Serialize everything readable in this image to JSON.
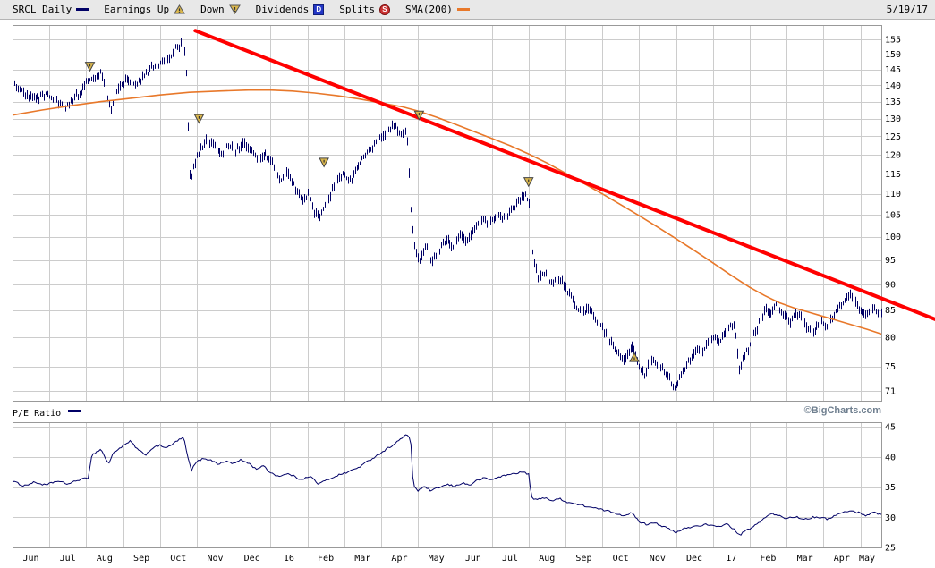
{
  "header": {
    "symbol_label": "SRCL Daily",
    "legend_items": [
      {
        "label": "Earnings Up",
        "icon": "earnings-up-icon"
      },
      {
        "label": "Down",
        "icon": "earnings-down-icon"
      },
      {
        "label": "Dividends",
        "icon": "dividend-icon",
        "glyph": "D"
      },
      {
        "label": "Splits",
        "icon": "split-icon",
        "glyph": "S"
      },
      {
        "label": "SMA(200)",
        "icon": "sma-line-icon"
      }
    ],
    "date": "5/19/17"
  },
  "pe_panel_label": "P/E Ratio",
  "copyright": "©BigCharts.com",
  "colors": {
    "price": "#000066",
    "sma": "#e8782a",
    "trend": "#ff0000",
    "grid": "#cccccc",
    "frame": "#999999",
    "marker_fill": "#d9b64d",
    "marker_stroke": "#444444",
    "dividend": "#2337c6",
    "split": "#cc3333",
    "legend_bg": "#e8e8e8",
    "copyright_color": "#6f7f8f"
  },
  "chart_data": [
    {
      "type": "ohlc-bar",
      "name": "SRCL daily price",
      "title": "SRCL Daily with SMA(200) and downtrend line",
      "x_unit": "months since 2015-06-01",
      "x_range": [
        0,
        23.57
      ],
      "x_tick_labels": [
        "Jun",
        "Jul",
        "Aug",
        "Sep",
        "Oct",
        "Nov",
        "Dec",
        "16",
        "Feb",
        "Mar",
        "Apr",
        "May",
        "Jun",
        "Jul",
        "Aug",
        "Sep",
        "Oct",
        "Nov",
        "Dec",
        "17",
        "Feb",
        "Mar",
        "Apr",
        "May"
      ],
      "y_scale": "log",
      "y_range": [
        69.5,
        160
      ],
      "y_ticks": [
        155,
        150,
        145,
        140,
        135,
        130,
        125,
        120,
        115,
        110,
        105,
        100,
        95,
        90,
        85,
        80,
        75,
        71
      ],
      "grid": true,
      "price_path": [
        [
          0,
          140.5
        ],
        [
          0.3,
          137.5
        ],
        [
          0.6,
          135.5
        ],
        [
          0.9,
          137.5
        ],
        [
          1.15,
          135.5
        ],
        [
          1.45,
          133.5
        ],
        [
          1.75,
          137
        ],
        [
          2.0,
          140.5
        ],
        [
          2.2,
          142.5
        ],
        [
          2.4,
          144.5
        ],
        [
          2.55,
          137.5
        ],
        [
          2.65,
          131.5
        ],
        [
          2.85,
          139
        ],
        [
          3.05,
          142
        ],
        [
          3.35,
          140.5
        ],
        [
          3.65,
          144
        ],
        [
          3.9,
          146.5
        ],
        [
          4.15,
          148
        ],
        [
          4.4,
          151.5
        ],
        [
          4.6,
          154
        ],
        [
          4.7,
          149
        ],
        [
          4.76,
          128
        ],
        [
          4.82,
          112
        ],
        [
          4.9,
          117
        ],
        [
          5.05,
          120.5
        ],
        [
          5.25,
          124
        ],
        [
          5.45,
          123
        ],
        [
          5.65,
          119.5
        ],
        [
          5.85,
          122.5
        ],
        [
          6.05,
          121
        ],
        [
          6.25,
          123
        ],
        [
          6.45,
          121.5
        ],
        [
          6.65,
          118.5
        ],
        [
          6.85,
          120.5
        ],
        [
          7.05,
          117.5
        ],
        [
          7.25,
          113.5
        ],
        [
          7.45,
          115.5
        ],
        [
          7.65,
          111.5
        ],
        [
          7.85,
          108.5
        ],
        [
          8.05,
          110.5
        ],
        [
          8.2,
          105.5
        ],
        [
          8.35,
          104.5
        ],
        [
          8.55,
          108.5
        ],
        [
          8.75,
          112.5
        ],
        [
          8.95,
          115
        ],
        [
          9.15,
          113
        ],
        [
          9.35,
          117
        ],
        [
          9.6,
          120.5
        ],
        [
          9.85,
          123
        ],
        [
          10.1,
          125.5
        ],
        [
          10.35,
          128
        ],
        [
          10.5,
          126
        ],
        [
          10.7,
          126.5
        ],
        [
          10.82,
          104
        ],
        [
          10.92,
          97
        ],
        [
          11.05,
          95
        ],
        [
          11.2,
          98
        ],
        [
          11.35,
          94.5
        ],
        [
          11.55,
          97
        ],
        [
          11.75,
          99.5
        ],
        [
          11.95,
          98
        ],
        [
          12.15,
          100.5
        ],
        [
          12.35,
          99
        ],
        [
          12.55,
          102
        ],
        [
          12.75,
          104
        ],
        [
          12.95,
          103
        ],
        [
          13.15,
          105.5
        ],
        [
          13.35,
          104
        ],
        [
          13.55,
          106.5
        ],
        [
          13.75,
          108.5
        ],
        [
          13.9,
          110
        ],
        [
          14.02,
          108
        ],
        [
          14.1,
          96
        ],
        [
          14.25,
          91
        ],
        [
          14.45,
          92.5
        ],
        [
          14.65,
          90
        ],
        [
          14.85,
          91.5
        ],
        [
          15.05,
          88.5
        ],
        [
          15.25,
          86
        ],
        [
          15.45,
          84.5
        ],
        [
          15.65,
          85.5
        ],
        [
          15.85,
          83
        ],
        [
          16.1,
          80.5
        ],
        [
          16.35,
          78
        ],
        [
          16.6,
          76
        ],
        [
          16.8,
          78.5
        ],
        [
          17.0,
          75
        ],
        [
          17.15,
          73.5
        ],
        [
          17.3,
          76.5
        ],
        [
          17.5,
          75
        ],
        [
          17.7,
          74
        ],
        [
          17.9,
          72
        ],
        [
          18.0,
          71.5
        ],
        [
          18.15,
          74
        ],
        [
          18.35,
          76
        ],
        [
          18.55,
          77.5
        ],
        [
          18.75,
          78
        ],
        [
          18.95,
          80
        ],
        [
          19.15,
          79
        ],
        [
          19.35,
          81
        ],
        [
          19.55,
          82.5
        ],
        [
          19.63,
          79.5
        ],
        [
          19.72,
          74.5
        ],
        [
          19.85,
          77
        ],
        [
          20.0,
          78.5
        ],
        [
          20.2,
          82
        ],
        [
          20.4,
          85.5
        ],
        [
          20.55,
          84
        ],
        [
          20.7,
          86.5
        ],
        [
          20.9,
          84.5
        ],
        [
          21.1,
          83
        ],
        [
          21.3,
          84.5
        ],
        [
          21.5,
          82
        ],
        [
          21.7,
          80.5
        ],
        [
          21.9,
          83
        ],
        [
          22.1,
          82
        ],
        [
          22.3,
          84.5
        ],
        [
          22.5,
          86.5
        ],
        [
          22.7,
          88
        ],
        [
          22.85,
          86.5
        ],
        [
          23.0,
          85
        ],
        [
          23.15,
          84
        ],
        [
          23.35,
          85.5
        ],
        [
          23.57,
          84.5
        ]
      ],
      "sma200": {
        "name": "SMA(200)",
        "points": [
          [
            0,
            131
          ],
          [
            0.8,
            132.5
          ],
          [
            1.6,
            133.8
          ],
          [
            2.4,
            135
          ],
          [
            3.2,
            136
          ],
          [
            4.0,
            137
          ],
          [
            4.8,
            137.8
          ],
          [
            5.6,
            138.2
          ],
          [
            6.4,
            138.5
          ],
          [
            7.0,
            138.5
          ],
          [
            7.6,
            138.2
          ],
          [
            8.2,
            137.6
          ],
          [
            8.8,
            136.8
          ],
          [
            9.4,
            135.8
          ],
          [
            10.0,
            134.6
          ],
          [
            10.6,
            133.4
          ],
          [
            11.0,
            132.2
          ],
          [
            11.5,
            130.4
          ],
          [
            12.0,
            128.4
          ],
          [
            12.5,
            126.4
          ],
          [
            13.0,
            124.4
          ],
          [
            13.5,
            122.4
          ],
          [
            14.0,
            120.2
          ],
          [
            14.5,
            117.8
          ],
          [
            15.0,
            115.2
          ],
          [
            15.5,
            112.6
          ],
          [
            16.0,
            110
          ],
          [
            16.5,
            107.4
          ],
          [
            17.0,
            104.8
          ],
          [
            17.5,
            102.2
          ],
          [
            18.0,
            99.6
          ],
          [
            18.5,
            97
          ],
          [
            19.0,
            94.4
          ],
          [
            19.5,
            91.8
          ],
          [
            20.0,
            89.4
          ],
          [
            20.4,
            87.8
          ],
          [
            20.8,
            86.4
          ],
          [
            21.2,
            85.4
          ],
          [
            21.6,
            84.6
          ],
          [
            22.0,
            83.8
          ],
          [
            22.4,
            83
          ],
          [
            22.8,
            82.2
          ],
          [
            23.2,
            81.4
          ],
          [
            23.57,
            80.6
          ]
        ]
      },
      "trendline": {
        "name": "downtrend-line",
        "t1": 4.96,
        "p1": 158,
        "t2": 25.06,
        "p2": 83.2
      },
      "markers": [
        {
          "t": 2.1,
          "price": 146,
          "kind": "earnings-down"
        },
        {
          "t": 5.06,
          "price": 130,
          "kind": "earnings-down"
        },
        {
          "t": 8.45,
          "price": 118,
          "kind": "earnings-down"
        },
        {
          "t": 11.03,
          "price": 131,
          "kind": "earnings-down"
        },
        {
          "t": 14.0,
          "price": 113,
          "kind": "earnings-down"
        },
        {
          "t": 16.87,
          "price": 76.5,
          "kind": "earnings-up"
        }
      ],
      "last_date": "5/19/17"
    },
    {
      "type": "line",
      "name": "P/E Ratio",
      "x_range": [
        0,
        23.57
      ],
      "y_range": [
        25,
        45.75
      ],
      "y_ticks": [
        45,
        40,
        35,
        30,
        25
      ],
      "grid": true,
      "points": [
        [
          0,
          36.0
        ],
        [
          0.3,
          35.2
        ],
        [
          0.6,
          35.8
        ],
        [
          0.9,
          35.3
        ],
        [
          1.2,
          36.0
        ],
        [
          1.5,
          35.5
        ],
        [
          1.8,
          36.2
        ],
        [
          2.05,
          36.5
        ],
        [
          2.15,
          40.3
        ],
        [
          2.4,
          41.3
        ],
        [
          2.6,
          38.8
        ],
        [
          2.75,
          40.8
        ],
        [
          3.0,
          41.8
        ],
        [
          3.2,
          42.6
        ],
        [
          3.4,
          41.2
        ],
        [
          3.6,
          40.3
        ],
        [
          3.8,
          41.5
        ],
        [
          4.0,
          41.9
        ],
        [
          4.2,
          41.5
        ],
        [
          4.5,
          42.8
        ],
        [
          4.65,
          43.2
        ],
        [
          4.73,
          40.5
        ],
        [
          4.85,
          37.8
        ],
        [
          5.0,
          39.2
        ],
        [
          5.2,
          39.8
        ],
        [
          5.4,
          39.4
        ],
        [
          5.6,
          38.8
        ],
        [
          5.8,
          39.3
        ],
        [
          6.0,
          38.9
        ],
        [
          6.2,
          39.5
        ],
        [
          6.4,
          39.0
        ],
        [
          6.6,
          38.0
        ],
        [
          6.8,
          38.5
        ],
        [
          7.0,
          37.4
        ],
        [
          7.2,
          36.8
        ],
        [
          7.5,
          37.2
        ],
        [
          7.8,
          36.3
        ],
        [
          8.1,
          36.7
        ],
        [
          8.3,
          35.5
        ],
        [
          8.5,
          36.1
        ],
        [
          8.8,
          36.9
        ],
        [
          9.1,
          37.5
        ],
        [
          9.4,
          38.3
        ],
        [
          9.7,
          39.5
        ],
        [
          10.0,
          40.7
        ],
        [
          10.3,
          41.9
        ],
        [
          10.5,
          42.8
        ],
        [
          10.65,
          43.6
        ],
        [
          10.8,
          43.2
        ],
        [
          10.87,
          35.3
        ],
        [
          11.0,
          34.4
        ],
        [
          11.2,
          35.1
        ],
        [
          11.35,
          34.3
        ],
        [
          11.55,
          34.9
        ],
        [
          11.8,
          35.4
        ],
        [
          12.0,
          35.1
        ],
        [
          12.2,
          35.7
        ],
        [
          12.4,
          35.3
        ],
        [
          12.6,
          36.1
        ],
        [
          12.8,
          36.5
        ],
        [
          13.0,
          36.2
        ],
        [
          13.2,
          36.7
        ],
        [
          13.5,
          37.1
        ],
        [
          13.8,
          37.5
        ],
        [
          14.0,
          37.2
        ],
        [
          14.08,
          33.2
        ],
        [
          14.25,
          32.9
        ],
        [
          14.45,
          33.3
        ],
        [
          14.65,
          32.7
        ],
        [
          14.85,
          33.1
        ],
        [
          15.05,
          32.5
        ],
        [
          15.35,
          32.1
        ],
        [
          15.65,
          31.7
        ],
        [
          15.95,
          31.3
        ],
        [
          16.25,
          30.9
        ],
        [
          16.55,
          30.3
        ],
        [
          16.8,
          30.7
        ],
        [
          17.0,
          29.3
        ],
        [
          17.2,
          28.8
        ],
        [
          17.4,
          29.2
        ],
        [
          17.6,
          28.6
        ],
        [
          17.8,
          28.1
        ],
        [
          18.0,
          27.4
        ],
        [
          18.2,
          28.1
        ],
        [
          18.5,
          28.5
        ],
        [
          18.8,
          28.8
        ],
        [
          19.1,
          28.4
        ],
        [
          19.4,
          28.9
        ],
        [
          19.6,
          27.8
        ],
        [
          19.72,
          27.0
        ],
        [
          19.9,
          27.8
        ],
        [
          20.1,
          28.4
        ],
        [
          20.4,
          29.9
        ],
        [
          20.6,
          30.6
        ],
        [
          20.8,
          30.2
        ],
        [
          21.0,
          29.8
        ],
        [
          21.2,
          30.1
        ],
        [
          21.5,
          29.7
        ],
        [
          21.8,
          30.1
        ],
        [
          22.1,
          29.7
        ],
        [
          22.4,
          30.5
        ],
        [
          22.7,
          31.1
        ],
        [
          23.0,
          30.7
        ],
        [
          23.15,
          30.3
        ],
        [
          23.35,
          30.8
        ],
        [
          23.57,
          30.5
        ]
      ]
    }
  ]
}
